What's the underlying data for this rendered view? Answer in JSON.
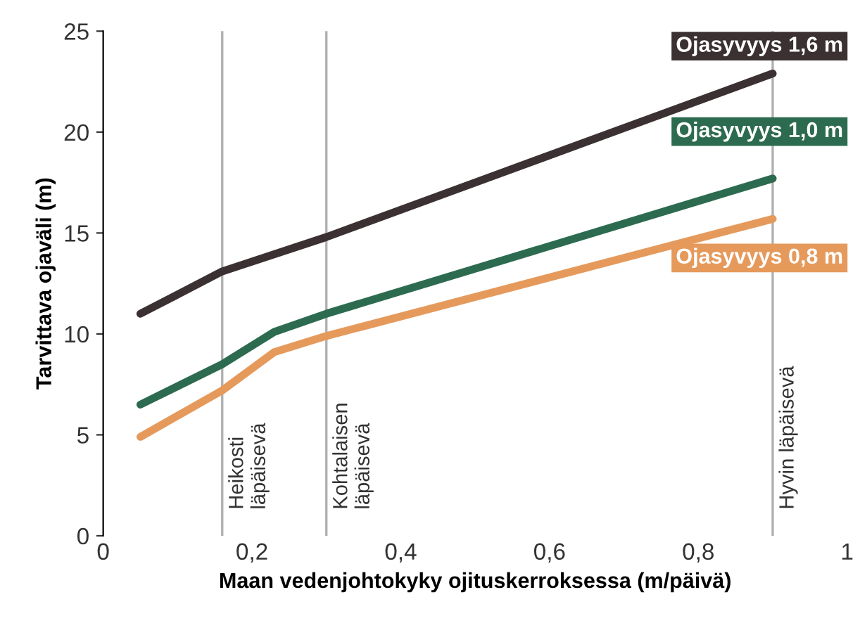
{
  "chart_data": {
    "type": "line",
    "xlabel": "Maan vedenjohtokyky ojituskerroksessa (m/päivä)",
    "ylabel": "Tarvittava ojaväli (m)",
    "xlim": [
      0,
      1
    ],
    "ylim": [
      0,
      25
    ],
    "xticks": [
      0,
      {
        "value": 0.2,
        "label": "0,2"
      },
      {
        "value": 0.4,
        "label": "0,4"
      },
      {
        "value": 0.6,
        "label": "0,6"
      },
      {
        "value": 0.8,
        "label": "0,8"
      },
      1
    ],
    "yticks": [
      0,
      5,
      10,
      15,
      20,
      25
    ],
    "grid": false,
    "legend": false,
    "marker": "none",
    "line_style": "solid",
    "series": [
      {
        "name": "Ojasyvyys 1,6 m",
        "color": "#3b3132",
        "x": [
          0.05,
          0.16,
          0.3,
          0.9
        ],
        "values": [
          11.0,
          13.1,
          14.8,
          22.9
        ]
      },
      {
        "name": "Ojasyvyys 1,0 m",
        "color": "#2d6b50",
        "x": [
          0.05,
          0.16,
          0.23,
          0.3,
          0.9
        ],
        "values": [
          6.5,
          8.5,
          10.1,
          11.0,
          17.7
        ]
      },
      {
        "name": "Ojasyvyys 0,8 m",
        "color": "#e59a5c",
        "x": [
          0.05,
          0.16,
          0.23,
          0.3,
          0.9
        ],
        "values": [
          4.9,
          7.2,
          9.1,
          9.9,
          15.7
        ]
      }
    ],
    "ref_lines": [
      {
        "axis": "x",
        "value": 0.16,
        "label": "Heikosti\nläpäisevä",
        "color": "#b0b0b0"
      },
      {
        "axis": "x",
        "value": 0.3,
        "label": "Kohtalaisen\nläpäisevä",
        "color": "#b0b0b0"
      },
      {
        "axis": "x",
        "value": 0.9,
        "label": "Hyvin läpäisevä",
        "color": "#b0b0b0"
      }
    ]
  }
}
